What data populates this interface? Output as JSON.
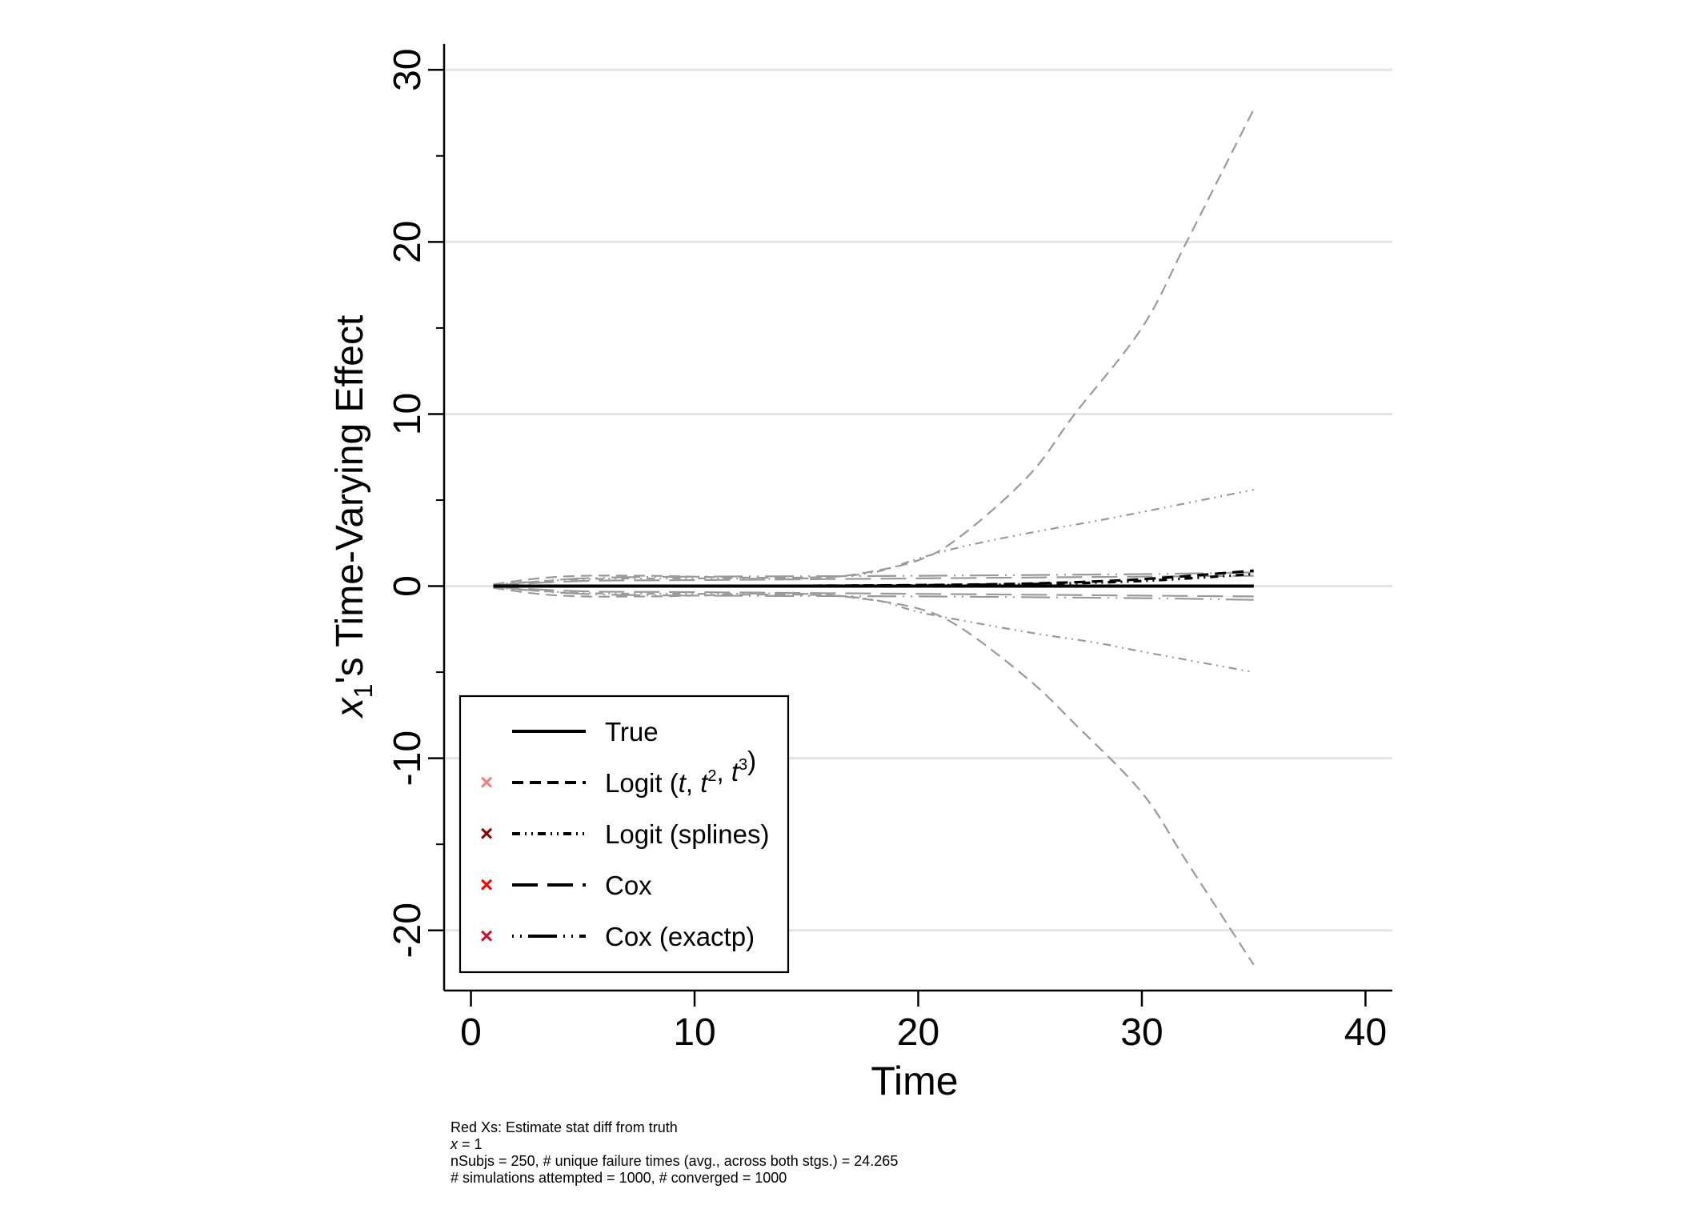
{
  "chart_data": {
    "type": "line",
    "ylabel": {
      "var": "x",
      "sub": "1",
      "rest": "'s Time-Varying Effect"
    },
    "xlabel": "Time",
    "xlim": [
      -1.2,
      41.2
    ],
    "ylim": [
      -23.5,
      31.5
    ],
    "x_ticks": [
      0,
      10,
      20,
      30,
      40
    ],
    "x_tick_labels": [
      "0",
      "10",
      "20",
      "30",
      "40"
    ],
    "y_ticks": [
      -20,
      -10,
      0,
      10,
      20,
      30
    ],
    "y_tick_labels": [
      "-20",
      "-10",
      "0",
      "10",
      "20",
      "30"
    ],
    "y_minor_ticks": [
      -15,
      -5,
      5,
      15,
      25
    ],
    "grid": true,
    "legend_position": "bottom-left",
    "series": [
      {
        "name": "True",
        "style": "solid",
        "color": "#000000",
        "x": [
          1,
          35
        ],
        "y": [
          0,
          0
        ]
      },
      {
        "name": "Logit (t, t2, t3)",
        "style": "dash",
        "color": "#000000",
        "x": [
          1,
          5,
          10,
          15,
          20,
          25,
          30,
          35
        ],
        "y": [
          0,
          0,
          0,
          0.02,
          0.06,
          0.15,
          0.4,
          0.9
        ]
      },
      {
        "name": "Logit (splines)",
        "style": "dashdotdot",
        "color": "#000000",
        "x": [
          1,
          5,
          10,
          15,
          20,
          25,
          30,
          35
        ],
        "y": [
          0,
          0,
          0,
          0.02,
          0.05,
          0.12,
          0.3,
          0.7
        ]
      },
      {
        "name": "Cox",
        "style": "longdash",
        "color": "#000000",
        "x": [
          1,
          35
        ],
        "y": [
          0,
          0
        ]
      },
      {
        "name": "Cox (exactp)",
        "style": "dotsolid",
        "color": "#000000",
        "x": [
          1,
          35
        ],
        "y": [
          0,
          0
        ]
      }
    ],
    "bands": [
      {
        "of": "Logit (t, t2, t3)",
        "style": "dash",
        "color": "#9a9a9a",
        "x": [
          1,
          3,
          5,
          8,
          10,
          12,
          15,
          17,
          20,
          22,
          25,
          27,
          30,
          32,
          35
        ],
        "upper": [
          0.1,
          0.45,
          0.6,
          0.6,
          0.55,
          0.5,
          0.5,
          0.65,
          1.5,
          3.0,
          6.5,
          10.0,
          15.0,
          20.0,
          27.7
        ],
        "lower": [
          -0.1,
          -0.45,
          -0.6,
          -0.6,
          -0.55,
          -0.5,
          -0.5,
          -0.65,
          -1.3,
          -2.5,
          -5.5,
          -8.0,
          -12.0,
          -16.0,
          -22.0
        ]
      },
      {
        "of": "Logit (splines)",
        "style": "dashdotdot",
        "color": "#9a9a9a",
        "x": [
          1,
          5,
          10,
          15,
          18,
          20,
          22,
          25,
          28,
          30,
          35
        ],
        "upper": [
          0.1,
          0.4,
          0.45,
          0.45,
          0.8,
          1.6,
          2.3,
          3.1,
          3.8,
          4.3,
          5.6
        ],
        "lower": [
          -0.1,
          -0.4,
          -0.45,
          -0.45,
          -0.8,
          -1.5,
          -2.0,
          -2.7,
          -3.3,
          -3.8,
          -5.0
        ]
      },
      {
        "of": "Cox",
        "style": "longdash",
        "color": "#9a9a9a",
        "x": [
          1,
          5,
          10,
          20,
          30,
          35
        ],
        "upper": [
          0.05,
          0.3,
          0.35,
          0.45,
          0.55,
          0.6
        ],
        "lower": [
          -0.05,
          -0.3,
          -0.35,
          -0.45,
          -0.55,
          -0.6
        ]
      },
      {
        "of": "Cox (exactp)",
        "style": "dotsolid",
        "color": "#9a9a9a",
        "x": [
          1,
          5,
          10,
          20,
          30,
          35
        ],
        "upper": [
          0.05,
          0.45,
          0.55,
          0.6,
          0.7,
          0.8
        ],
        "lower": [
          -0.05,
          -0.45,
          -0.55,
          -0.6,
          -0.7,
          -0.8
        ]
      }
    ],
    "legend": [
      {
        "label_parts": [
          {
            "t": "True"
          }
        ],
        "marker_color": null,
        "style": "solid"
      },
      {
        "label_parts": [
          {
            "t": "Logit ("
          },
          {
            "t": "t",
            "i": true
          },
          {
            "t": ", "
          },
          {
            "t": "t",
            "i": true
          },
          {
            "t": "2",
            "sup": true
          },
          {
            "t": ", "
          },
          {
            "t": "t",
            "i": true
          },
          {
            "t": "3",
            "sup": true
          },
          {
            "t": ")"
          }
        ],
        "marker_color": "#f08080",
        "style": "dash"
      },
      {
        "label_parts": [
          {
            "t": "Logit (splines)"
          }
        ],
        "marker_color": "#8b0000",
        "style": "dashdotdot"
      },
      {
        "label_parts": [
          {
            "t": "Cox"
          }
        ],
        "marker_color": "#ff0000",
        "style": "longdash"
      },
      {
        "label_parts": [
          {
            "t": "Cox (exactp)"
          }
        ],
        "marker_color": "#c8102e",
        "style": "dotsolid"
      }
    ],
    "legend_marker": "×"
  },
  "notes": {
    "line1": "Red Xs: Estimate stat diff from truth",
    "line2_var": "x",
    "line2_rest": " = 1",
    "line3": "nSubjs = 250, # unique failure times (avg., across both stgs.) = 24.265",
    "line4": "# simulations attempted = 1000, # converged = 1000"
  }
}
